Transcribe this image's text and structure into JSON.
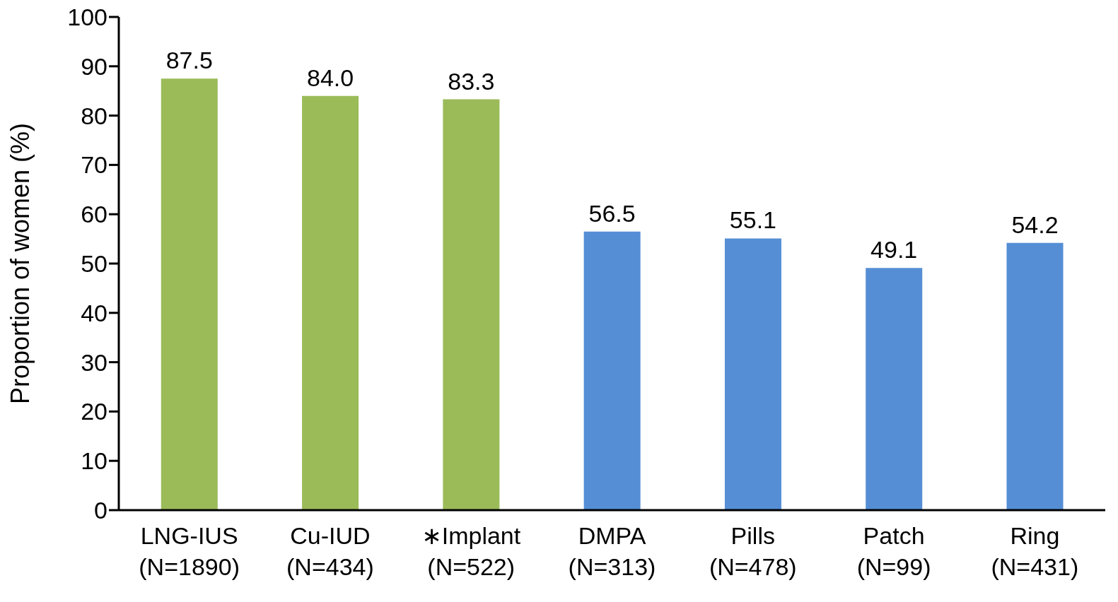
{
  "chart_data": {
    "type": "bar",
    "ylabel": "Proportion of women (%)",
    "categories": [
      "LNG-IUS\n(N=1890)",
      "Cu-IUD\n(N=434)",
      "∗Implant\n(N=522)",
      "DMPA\n(N=313)",
      "Pills\n(N=478)",
      "Patch\n(N=99)",
      "Ring\n(N=431)"
    ],
    "values": [
      87.5,
      84.0,
      83.3,
      56.5,
      55.1,
      49.1,
      54.2
    ],
    "colors": [
      "#9bbb59",
      "#9bbb59",
      "#9bbb59",
      "#558ed5",
      "#558ed5",
      "#558ed5",
      "#558ed5"
    ],
    "value_labels": [
      "87.5",
      "84.0",
      "83.3",
      "56.5",
      "55.1",
      "49.1",
      "54.2"
    ],
    "ylim": [
      0,
      100
    ],
    "yticks": [
      0,
      10,
      20,
      30,
      40,
      50,
      60,
      70,
      80,
      90,
      100
    ],
    "grid": false
  }
}
